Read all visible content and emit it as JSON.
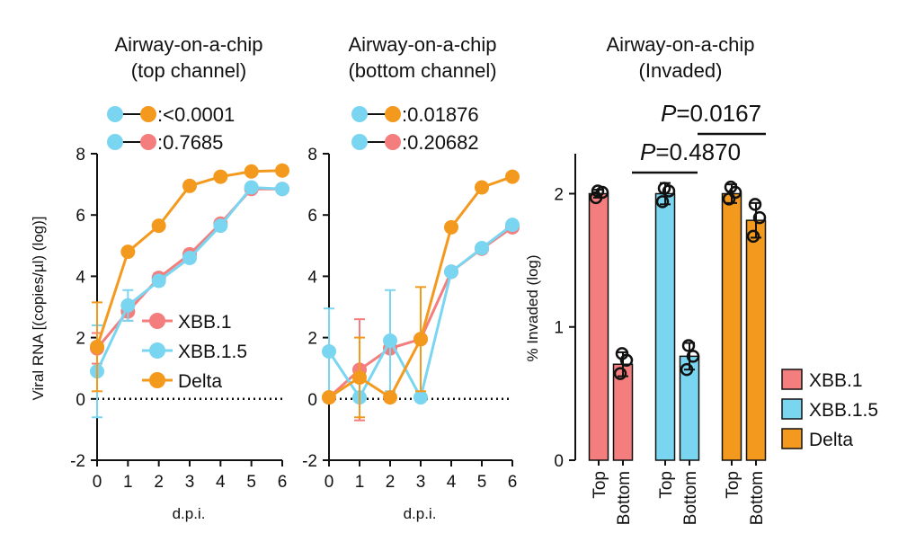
{
  "colors": {
    "xbb1": "#f47d7d",
    "xbb15": "#7ad6f0",
    "delta": "#f39a1e",
    "axis": "#111111"
  },
  "chart_data": [
    {
      "type": "line",
      "title": [
        "Airway-on-a-chip",
        "(top channel)"
      ],
      "xlabel": "d.p.i.",
      "ylabel": "Viral RNA [(copies/µl) (log)]",
      "x": [
        0,
        1,
        2,
        3,
        4,
        5,
        6
      ],
      "xlim": [
        0,
        6
      ],
      "ylim": [
        -2,
        8
      ],
      "xticks": [
        "0",
        "1",
        "2",
        "3",
        "4",
        "5",
        "6"
      ],
      "yticks": [
        "-2",
        "0",
        "2",
        "4",
        "6",
        "8"
      ],
      "series": [
        {
          "name": "XBB.1",
          "color": "#f47d7d",
          "values": [
            1.65,
            2.85,
            3.95,
            4.72,
            5.72,
            6.85,
            6.85
          ],
          "err": [
            0.5,
            0.3,
            0.15,
            0.15,
            0.12,
            0.1,
            0.1
          ]
        },
        {
          "name": "XBB.1.5",
          "color": "#7ad6f0",
          "values": [
            0.9,
            3.05,
            3.85,
            4.6,
            5.65,
            6.9,
            6.85
          ],
          "err": [
            1.5,
            0.5,
            0.15,
            0.12,
            0.12,
            0.1,
            0.1
          ]
        },
        {
          "name": "Delta",
          "color": "#f39a1e",
          "values": [
            1.7,
            4.8,
            5.65,
            6.95,
            7.25,
            7.42,
            7.45
          ],
          "err": [
            1.45,
            0.1,
            0.1,
            0.08,
            0.08,
            0.06,
            0.06
          ]
        }
      ],
      "comparisons": [
        {
          "from": "#7ad6f0",
          "to": "#f39a1e",
          "label": ":<0.0001"
        },
        {
          "from": "#7ad6f0",
          "to": "#f47d7d",
          "label": ":0.7685"
        }
      ],
      "legend": [
        "XBB.1",
        "XBB.1.5",
        "Delta"
      ]
    },
    {
      "type": "line",
      "title": [
        "Airway-on-a-chip",
        "(bottom channel)"
      ],
      "xlabel": "d.p.i.",
      "x": [
        0,
        1,
        2,
        3,
        4,
        5,
        6
      ],
      "xlim": [
        0,
        6
      ],
      "ylim": [
        -2,
        8
      ],
      "xticks": [
        "0",
        "1",
        "2",
        "3",
        "4",
        "5",
        "6"
      ],
      "yticks": [
        "-2",
        "0",
        "2",
        "4",
        "6",
        "8"
      ],
      "series": [
        {
          "name": "XBB.1",
          "color": "#f47d7d",
          "values": [
            0.05,
            0.95,
            1.65,
            1.95,
            4.15,
            4.9,
            5.6
          ],
          "err": [
            0,
            1.65,
            0.1,
            0.1,
            0.1,
            0.1,
            0.1
          ]
        },
        {
          "name": "XBB.1.5",
          "color": "#7ad6f0",
          "values": [
            1.55,
            0.05,
            1.9,
            0.05,
            4.15,
            4.92,
            5.68
          ],
          "err": [
            1.4,
            0,
            1.65,
            0,
            0.1,
            0.1,
            0.1
          ]
        },
        {
          "name": "Delta",
          "color": "#f39a1e",
          "values": [
            0.05,
            0.7,
            0.05,
            1.95,
            5.6,
            6.9,
            7.25
          ],
          "err": [
            0,
            1.3,
            0,
            1.7,
            0.08,
            0.08,
            0.06
          ]
        }
      ],
      "comparisons": [
        {
          "from": "#7ad6f0",
          "to": "#f39a1e",
          "label": ":0.01876"
        },
        {
          "from": "#7ad6f0",
          "to": "#f47d7d",
          "label": ":0.20682"
        }
      ]
    },
    {
      "type": "bar",
      "title": [
        "Airway-on-a-chip",
        "(Invaded)"
      ],
      "ylabel": "% Invaded (log)",
      "ylim": [
        0,
        2.3
      ],
      "yticks": [
        "0",
        "1",
        "2"
      ],
      "categories": [
        "Top",
        "Bottom",
        "Top",
        "Bottom",
        "Top",
        "Bottom"
      ],
      "groups": [
        "XBB.1",
        "XBB.1",
        "XBB.1.5",
        "XBB.1.5",
        "Delta",
        "Delta"
      ],
      "colors": [
        "#f47d7d",
        "#f47d7d",
        "#7ad6f0",
        "#7ad6f0",
        "#f39a1e",
        "#f39a1e"
      ],
      "values": [
        2.0,
        0.72,
        2.0,
        0.78,
        2.0,
        1.8
      ],
      "err": [
        0.03,
        0.09,
        0.08,
        0.1,
        0.07,
        0.13
      ],
      "points": [
        [
          1.97,
          2.01,
          2.02
        ],
        [
          0.65,
          0.75,
          0.8
        ],
        [
          1.94,
          2.02,
          2.04
        ],
        [
          0.68,
          0.78,
          0.86
        ],
        [
          1.96,
          2.01,
          2.05
        ],
        [
          1.68,
          1.82,
          1.92
        ]
      ],
      "annotations": [
        {
          "italic": "P",
          "text": "=0.4870",
          "between": [
            1,
            3
          ]
        },
        {
          "italic": "P",
          "text": "=0.0167",
          "between": [
            3,
            5
          ]
        }
      ],
      "legend": [
        "XBB.1",
        "XBB.1.5",
        "Delta"
      ]
    }
  ]
}
